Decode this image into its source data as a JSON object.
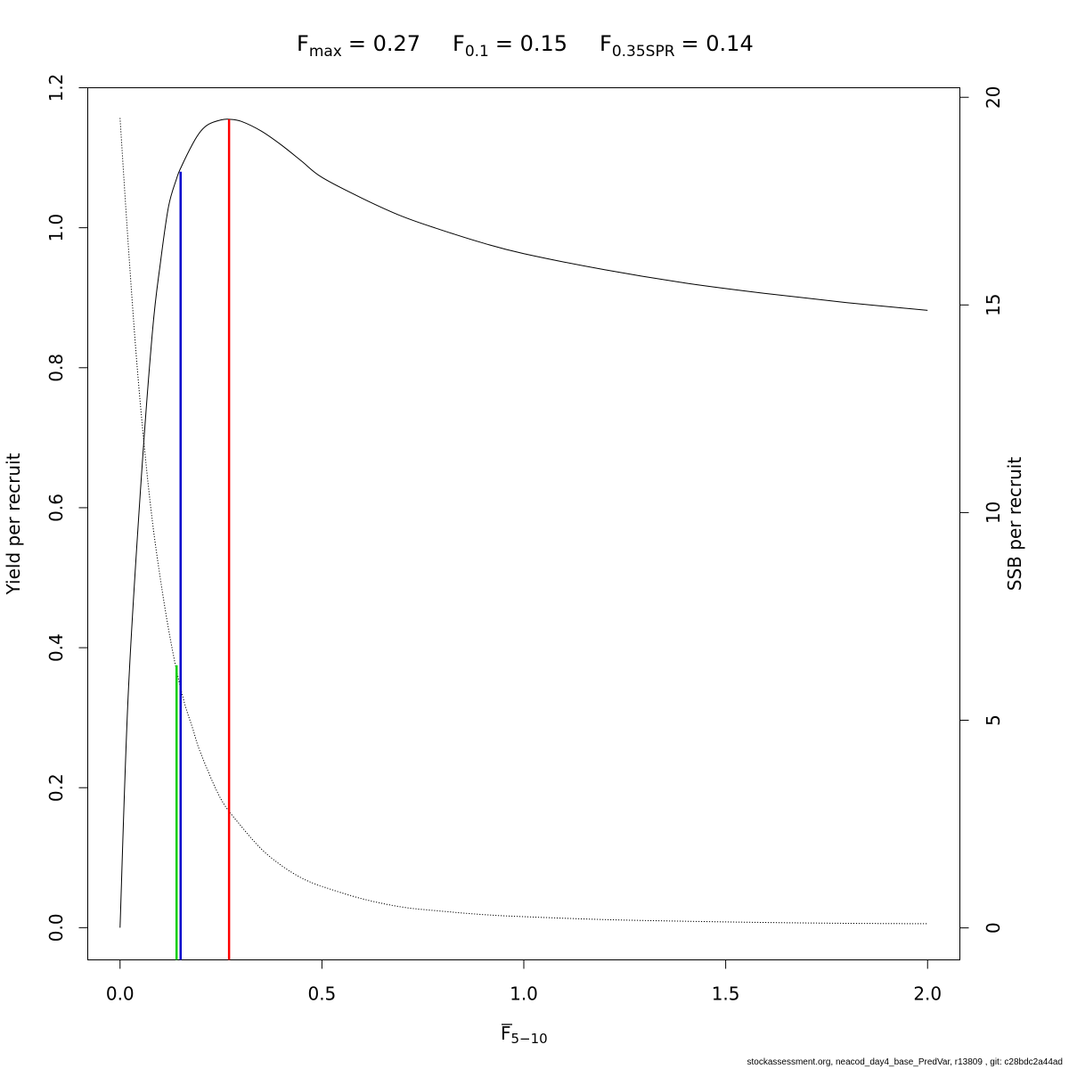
{
  "chart_data": {
    "type": "line",
    "title": {
      "fmax": {
        "symbol": "F",
        "sub": "max",
        "value": "= 0.27"
      },
      "f01": {
        "symbol": "F",
        "sub": "0.1",
        "value": "= 0.15"
      },
      "f035spr": {
        "symbol": "F",
        "sub": "0.35SPR",
        "value": "= 0.14"
      }
    },
    "xlabel": {
      "symbol": "F",
      "sub": "5−10"
    },
    "ylabel_left": "Yield per recruit",
    "ylabel_right": "SSB per recruit",
    "xlim": [
      -0.08,
      2.08
    ],
    "ylim_left": [
      -0.046,
      1.2
    ],
    "ylim_right": [
      -0.77,
      20.23
    ],
    "x_ticks": [
      0,
      0.5,
      1,
      1.5,
      2
    ],
    "x_tick_labels": [
      "0.0",
      "0.5",
      "1.0",
      "1.5",
      "2.0"
    ],
    "y_left_ticks": [
      0,
      0.2,
      0.4,
      0.6,
      0.8,
      1.0,
      1.2
    ],
    "y_left_tick_labels": [
      "0.0",
      "0.2",
      "0.4",
      "0.6",
      "0.8",
      "1.0",
      "1.2"
    ],
    "y_right_ticks": [
      0,
      5,
      10,
      15,
      20
    ],
    "y_right_tick_labels": [
      "0",
      "5",
      "10",
      "15",
      "20"
    ],
    "grid": false,
    "series": [
      {
        "axis": "left",
        "style": "solid",
        "color": "#000000",
        "x": [
          0,
          0.02,
          0.05,
          0.08,
          0.1,
          0.12,
          0.14,
          0.15,
          0.18,
          0.2,
          0.22,
          0.25,
          0.27,
          0.3,
          0.35,
          0.4,
          0.45,
          0.5,
          0.6,
          0.7,
          0.8,
          0.9,
          1.0,
          1.2,
          1.4,
          1.6,
          1.8,
          2.0
        ],
        "values": [
          0,
          0.33,
          0.62,
          0.85,
          0.95,
          1.03,
          1.07,
          1.085,
          1.12,
          1.138,
          1.148,
          1.154,
          1.155,
          1.152,
          1.138,
          1.118,
          1.095,
          1.072,
          1.042,
          1.016,
          0.996,
          0.978,
          0.963,
          0.94,
          0.921,
          0.906,
          0.893,
          0.882
        ]
      },
      {
        "axis": "right",
        "style": "dotted",
        "color": "#000000",
        "x": [
          0,
          0.02,
          0.04,
          0.06,
          0.08,
          0.1,
          0.12,
          0.14,
          0.16,
          0.18,
          0.2,
          0.25,
          0.3,
          0.35,
          0.4,
          0.45,
          0.5,
          0.6,
          0.7,
          0.8,
          0.9,
          1.0,
          1.2,
          1.4,
          1.6,
          1.8,
          2.0
        ],
        "values": [
          19.5,
          16.5,
          13.8,
          11.6,
          9.8,
          8.4,
          7.2,
          6.2,
          5.4,
          4.8,
          4.2,
          3.1,
          2.45,
          1.9,
          1.5,
          1.2,
          1.0,
          0.7,
          0.5,
          0.4,
          0.32,
          0.27,
          0.2,
          0.16,
          0.13,
          0.11,
          0.1
        ]
      }
    ],
    "reference_lines": [
      {
        "label": "Fmax",
        "x": 0.27,
        "y_left": 1.155,
        "color": "#ff0000"
      },
      {
        "label": "F0.1",
        "x": 0.15,
        "y_left": 1.08,
        "color": "#0000cd"
      },
      {
        "label": "F0.35SPR",
        "x": 0.14,
        "y_left": 0.375,
        "color": "#00cd00"
      }
    ]
  },
  "footer": "stockassessment.org, neacod_day4_base_PredVar, r13809 , git: c28bdc2a44ad"
}
